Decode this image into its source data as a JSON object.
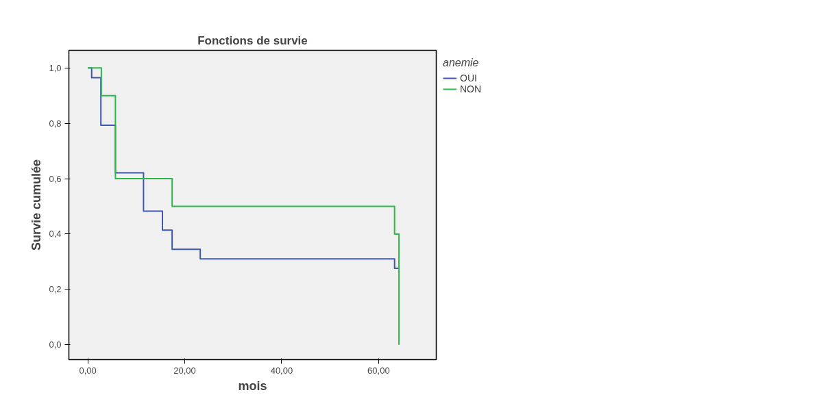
{
  "chart_data": {
    "type": "step",
    "title": "Fonctions de survie",
    "xlabel": "mois",
    "ylabel": "Survie cumulée",
    "legend_title": "anemie",
    "series": [
      {
        "name": "OUI",
        "color": "#3e58ac",
        "x": [
          0,
          0.8,
          2.7,
          5.7,
          11.5,
          15.4,
          17.4,
          23.2,
          63.3,
          64.2
        ],
        "values": [
          1,
          0.965,
          0.793,
          0.621,
          0.483,
          0.414,
          0.345,
          0.31,
          0.276,
          0.276
        ]
      },
      {
        "name": "NON",
        "color": "#2db84a",
        "x": [
          0,
          2.8,
          5.7,
          17.4,
          63.3,
          64.2
        ],
        "values": [
          1,
          0.9,
          0.6,
          0.5,
          0.4,
          0
        ]
      }
    ],
    "xlim": [
      -3.9,
      71.9
    ],
    "ylim": [
      -0.054,
      1.064
    ],
    "xticks": [
      {
        "value": 0,
        "label": "0,00"
      },
      {
        "value": 20,
        "label": "20,00"
      },
      {
        "value": 40,
        "label": "40,00"
      },
      {
        "value": 60,
        "label": "60,00"
      }
    ],
    "yticks": [
      {
        "value": 0,
        "label": "0,0"
      },
      {
        "value": 0.2,
        "label": "0,2"
      },
      {
        "value": 0.4,
        "label": "0,4"
      },
      {
        "value": 0.6,
        "label": "0,6"
      },
      {
        "value": 0.8,
        "label": "0,8"
      },
      {
        "value": 1,
        "label": "1,0"
      }
    ],
    "grid": false,
    "legend": "right",
    "line_style": "solid",
    "marker": "none"
  }
}
